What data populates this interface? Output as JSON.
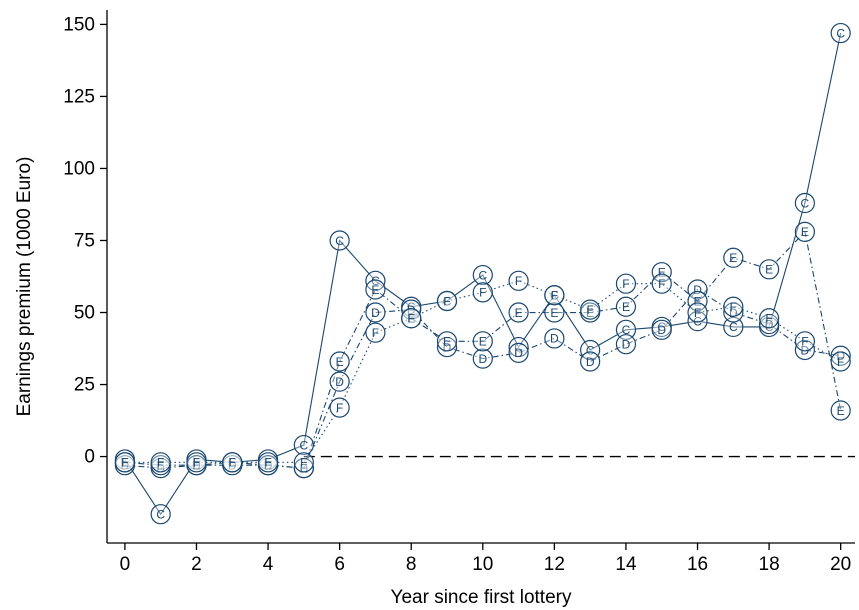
{
  "chart_data": {
    "type": "line",
    "xlabel": "Year since first lottery",
    "ylabel": "Earnings premium (1000 Euro)",
    "xlim": [
      -0.5,
      20.4
    ],
    "ylim": [
      -30,
      155
    ],
    "xticks": [
      0,
      2,
      4,
      6,
      8,
      10,
      12,
      14,
      16,
      18,
      20
    ],
    "yticks": [
      0,
      25,
      50,
      75,
      100,
      125,
      150
    ],
    "grid": false,
    "legend": "none",
    "reference_line": {
      "y": 0,
      "from_x": 5,
      "style": "dashed"
    },
    "x": [
      0,
      1,
      2,
      3,
      4,
      5,
      6,
      7,
      8,
      9,
      10,
      11,
      12,
      13,
      14,
      15,
      16,
      17,
      18,
      19,
      20
    ],
    "series": [
      {
        "name": "C",
        "line_style": "solid",
        "values": [
          -1,
          -20,
          -1,
          -2,
          -1,
          4,
          75,
          61,
          52,
          54,
          63,
          38,
          56,
          37,
          44,
          45,
          47,
          45,
          45,
          88,
          147
        ]
      },
      {
        "name": "D",
        "line_style": "dash-dot",
        "values": [
          -3,
          -4,
          -3,
          -3,
          -3,
          -4,
          26,
          50,
          51,
          38,
          34,
          36,
          41,
          33,
          39,
          44,
          58,
          50,
          46,
          37,
          35
        ]
      },
      {
        "name": "E",
        "line_style": "dash-dot",
        "values": [
          -2,
          -3,
          -3,
          -2,
          -3,
          -4,
          33,
          58,
          48,
          40,
          40,
          50,
          50,
          50,
          52,
          64,
          54,
          69,
          65,
          78,
          16
        ]
      },
      {
        "name": "F",
        "line_style": "dotted",
        "values": [
          -2,
          -2,
          -2,
          -2,
          -2,
          -2,
          17,
          43,
          48,
          54,
          57,
          61,
          56,
          51,
          60,
          60,
          50,
          52,
          48,
          40,
          33
        ]
      }
    ],
    "colors": {
      "series": "#1a476f",
      "axis": "#000000",
      "background": "#ffffff"
    }
  }
}
